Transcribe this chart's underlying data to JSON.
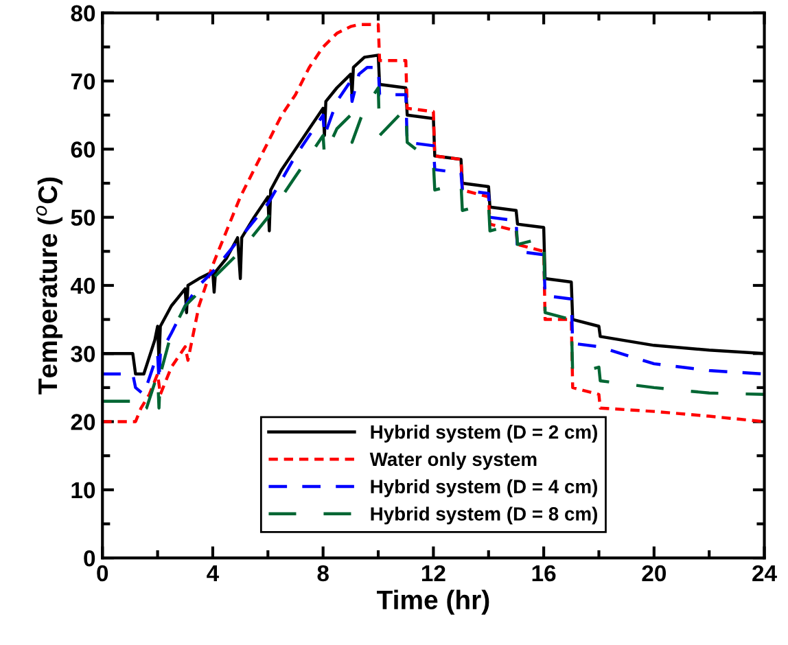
{
  "chart_data": {
    "type": "line",
    "xlabel": "Time (hr)",
    "ylabel": "Temperature ($^{o}$C)",
    "xlim": [
      0,
      24
    ],
    "ylim": [
      0,
      80
    ],
    "xticks": [
      0,
      4,
      8,
      12,
      16,
      20,
      24
    ],
    "yticks": [
      0,
      10,
      20,
      30,
      40,
      50,
      60,
      70,
      80
    ],
    "grid": false,
    "legend": "bottom",
    "marker": "none",
    "series": [
      {
        "name": "Hybrid system (D = 2 cm)",
        "color": "#000000",
        "line_style": "solid",
        "x": [
          0,
          1.1,
          1.2,
          1.5,
          1.9,
          2.0,
          2.05,
          2.1,
          2.5,
          3,
          3.05,
          3.1,
          3.5,
          4,
          4.05,
          4.1,
          4.5,
          4.9,
          5.0,
          5.05,
          5.5,
          6,
          6.05,
          6.1,
          6.5,
          7,
          7.5,
          8,
          8.05,
          8.1,
          8.5,
          9,
          9.05,
          9.1,
          9.5,
          10,
          10.05,
          11,
          11.05,
          12,
          12.05,
          13,
          13.05,
          14,
          14.05,
          15,
          15.05,
          16,
          16.05,
          17,
          17.05,
          18,
          18.05,
          20,
          22,
          24
        ],
        "values": [
          30,
          30,
          27,
          27,
          32,
          34,
          29,
          34,
          37,
          39.5,
          36,
          40,
          41,
          42,
          39,
          42,
          44,
          47,
          41,
          47,
          50,
          53,
          48,
          54,
          57,
          60,
          63,
          66,
          62,
          67,
          69,
          71,
          68,
          72,
          73.5,
          73.8,
          69.5,
          69,
          65,
          64.5,
          59,
          58.5,
          55,
          54.5,
          51.5,
          51,
          49,
          48.5,
          41,
          40.5,
          35,
          34,
          32.5,
          31.2,
          30.5,
          30
        ]
      },
      {
        "name": "Water only system",
        "color": "#ff0000",
        "line_style": "dotted",
        "x": [
          0,
          1.2,
          1.4,
          1.7,
          2,
          2.1,
          2.5,
          3,
          3.1,
          3.5,
          4,
          4.5,
          5,
          5.5,
          6,
          6.5,
          7,
          7.5,
          8,
          8.5,
          9,
          9.3,
          10,
          10.05,
          11,
          11.05,
          12,
          12.05,
          13,
          13.05,
          14,
          14.05,
          15,
          15.05,
          16,
          16.05,
          17,
          17.05,
          18,
          18.05,
          20,
          22,
          24
        ],
        "values": [
          20,
          20,
          22,
          24,
          27,
          24,
          28,
          31,
          29,
          37,
          43,
          48,
          53,
          57,
          61,
          65,
          68,
          72,
          75,
          77,
          78,
          78.3,
          78.3,
          73,
          73,
          66,
          65.5,
          59,
          58.5,
          54,
          53,
          49,
          48,
          46,
          45,
          35,
          35,
          25,
          24,
          22,
          21.5,
          20.8,
          20
        ]
      },
      {
        "name": "Hybrid system (D = 4 cm)",
        "color": "#0000ff",
        "line_style": "dashed",
        "x": [
          0,
          1.1,
          1.2,
          1.5,
          2,
          2.05,
          2.1,
          2.5,
          3,
          3.5,
          4,
          5,
          6,
          7,
          8,
          8.05,
          8.5,
          9,
          9.05,
          9.3,
          9.6,
          10,
          10.05,
          11,
          11.05,
          12,
          12.05,
          13,
          13.05,
          14,
          14.05,
          15,
          15.05,
          16,
          16.05,
          17,
          17.05,
          18,
          20,
          22,
          24
        ],
        "values": [
          27,
          27,
          25,
          24,
          30,
          26,
          30,
          33,
          37,
          40,
          42,
          47,
          52,
          59,
          65,
          62,
          67,
          70,
          67,
          71,
          72,
          72,
          68,
          68,
          61,
          60.5,
          57,
          56.5,
          54,
          53.5,
          50,
          49.5,
          45,
          44.5,
          38.5,
          38,
          31.5,
          31,
          28.5,
          27.5,
          27
        ]
      },
      {
        "name": "Hybrid system (D = 8 cm)",
        "color": "#006633",
        "line_style": "longdash",
        "x": [
          0,
          1.1,
          1.3,
          1.6,
          2,
          2.05,
          2.1,
          2.5,
          3,
          4,
          5,
          6,
          7,
          8,
          8.05,
          8.5,
          9,
          9.05,
          9.5,
          10,
          10.05,
          11,
          11.05,
          12,
          12.05,
          13,
          13.05,
          14,
          14.05,
          15,
          15.05,
          16,
          16.05,
          17,
          17.05,
          18,
          18.05,
          20,
          22,
          24
        ],
        "values": [
          23,
          23,
          21,
          22,
          27,
          22,
          27,
          33,
          37,
          41,
          45,
          50,
          56,
          62,
          59,
          63,
          65,
          61,
          66,
          69,
          62,
          66,
          61,
          58,
          54,
          55,
          51,
          52,
          48,
          49,
          46,
          47,
          36,
          35,
          27,
          28,
          26,
          25,
          24.2,
          24
        ]
      }
    ]
  }
}
